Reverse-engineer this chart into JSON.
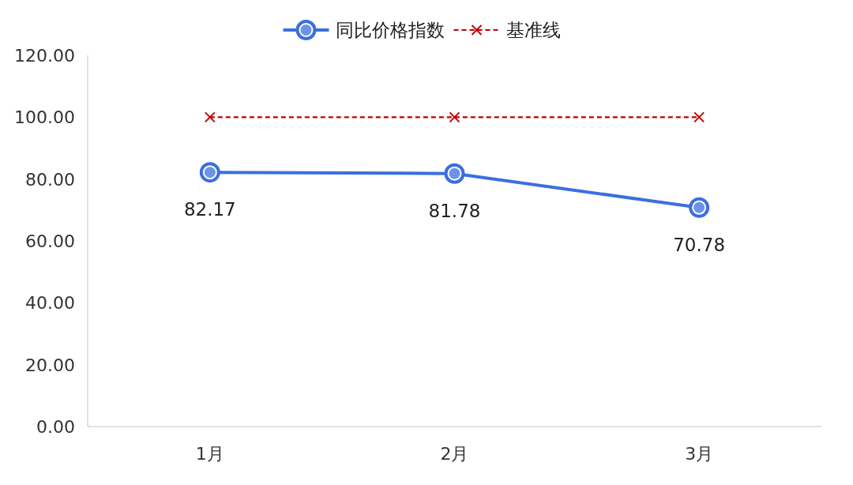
{
  "chart_data": {
    "type": "line",
    "categories": [
      "1月",
      "2月",
      "3月"
    ],
    "series": [
      {
        "name": "同比价格指数",
        "color": "#3b6fe0",
        "values": [
          82.17,
          81.78,
          70.78
        ],
        "marker": "circle",
        "line_style": "solid",
        "value_labels": [
          "82.17",
          "81.78",
          "70.78"
        ]
      },
      {
        "name": "基准线",
        "color": "#c00000",
        "values": [
          100,
          100,
          100
        ],
        "marker": "cross",
        "line_style": "dashed"
      }
    ],
    "ylim": [
      0,
      120
    ],
    "yticks": [
      {
        "value": 0,
        "label": "0.00"
      },
      {
        "value": 20,
        "label": "20.00"
      },
      {
        "value": 40,
        "label": "40.00"
      },
      {
        "value": 60,
        "label": "60.00"
      },
      {
        "value": 80,
        "label": "80.00"
      },
      {
        "value": 100,
        "label": "100.00"
      },
      {
        "value": 120,
        "label": "120.00"
      }
    ],
    "grid": false,
    "legend": "top"
  }
}
